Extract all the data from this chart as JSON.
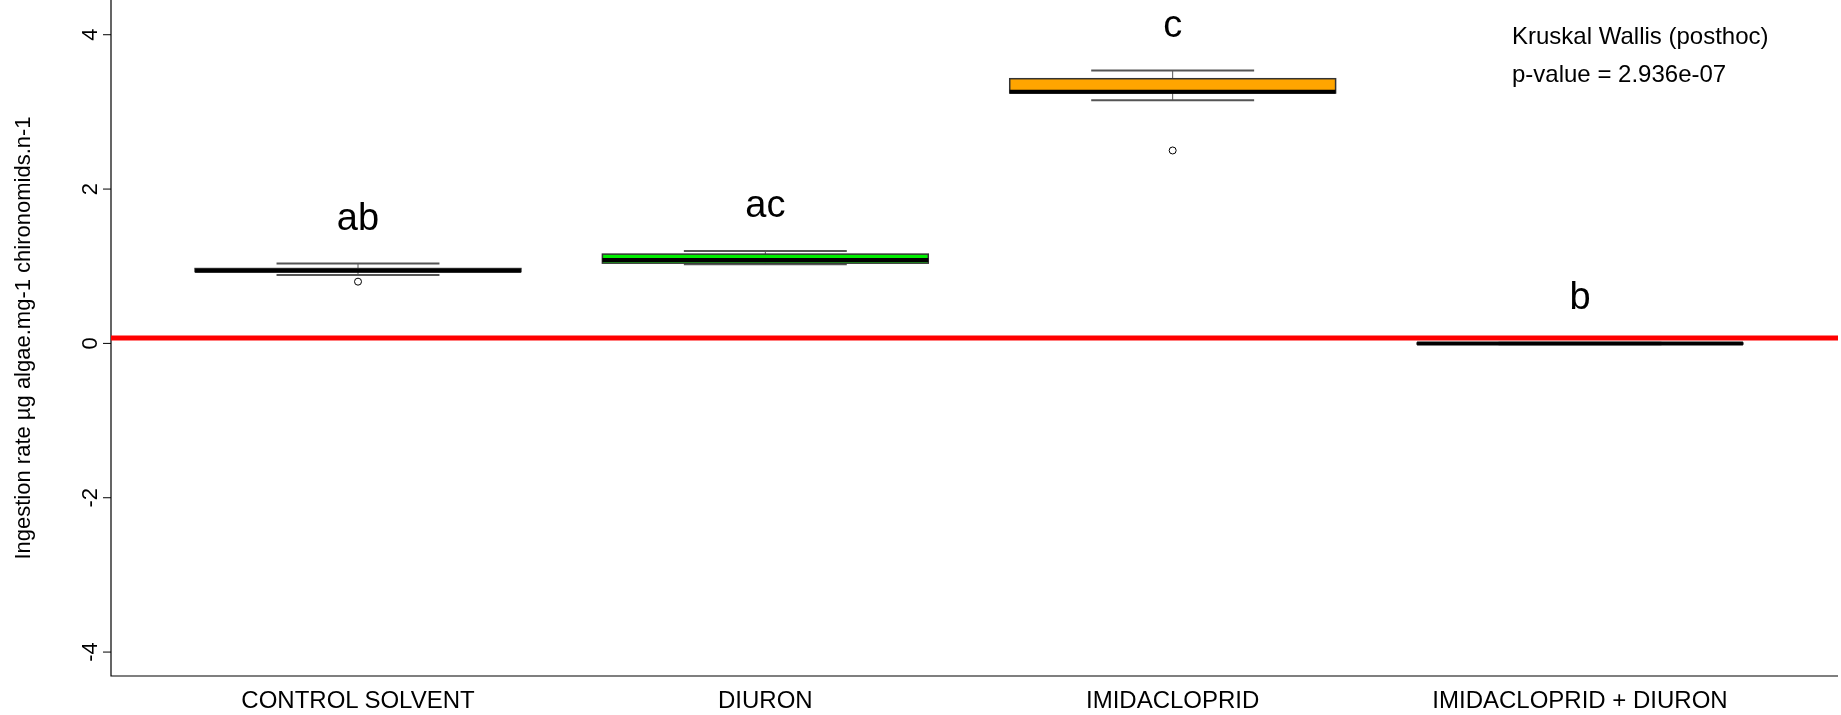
{
  "chart_data": {
    "type": "box",
    "ylabel": "Ingestion rate µg algae.mg-1 chironomids.n-1",
    "categories": [
      "CONTROL SOLVENT",
      "DIURON",
      "IMIDACLOPRID",
      "IMIDACLOPRID + DIURON"
    ],
    "colors": [
      "#ffffff",
      "#00ee00",
      "#ffa500",
      "#ffffff"
    ],
    "boxes": [
      {
        "low": 0.885,
        "q1": 0.93,
        "median": 0.94,
        "q3": 0.97,
        "high": 1.035,
        "outliers": [
          0.8
        ]
      },
      {
        "low": 1.025,
        "q1": 1.04,
        "median": 1.08,
        "q3": 1.157,
        "high": 1.196
      },
      {
        "low": 3.15,
        "q1": 3.245,
        "median": 3.26,
        "q3": 3.43,
        "high": 3.535,
        "outliers": [
          2.5
        ]
      },
      {
        "low": -0.01,
        "q1": -0.005,
        "median": 0,
        "q3": 0.005,
        "high": 0.01
      }
    ],
    "ylim": [
      -4.31,
      4.45
    ],
    "yticks": [
      -4,
      -2,
      0,
      2,
      4
    ],
    "ref_lines": [
      {
        "axis": "y",
        "value": 0.07,
        "color": "#ff0000"
      }
    ],
    "annotations": [
      "ab",
      "ac",
      "c",
      "b",
      "Kruskal Wallis (posthoc)",
      "p-value = 2.936e-07"
    ]
  }
}
